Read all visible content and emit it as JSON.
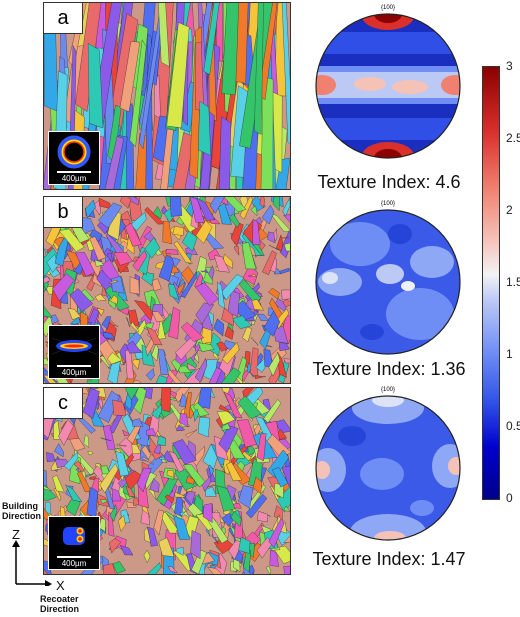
{
  "panels": [
    {
      "letter": "a",
      "scale": "400µm",
      "texture": "Texture Index: 4.6"
    },
    {
      "letter": "b",
      "scale": "400µm",
      "texture": "Texture Index: 1.36"
    },
    {
      "letter": "c",
      "scale": "400µm",
      "texture": "Texture Index: 1.47"
    }
  ],
  "pole_label": "{100}",
  "colorbar": {
    "ticks": [
      "3",
      "2.5",
      "2",
      "1.5",
      "1",
      "0.5",
      "0"
    ],
    "colors": {
      "low": "#00008b",
      "mid": "#f2f2f5",
      "high": "#8b0000"
    }
  },
  "axes": {
    "z_title": "Building Direction",
    "z_letter": "Z",
    "x_letter": "X",
    "x_title": "Recoater Direction"
  }
}
